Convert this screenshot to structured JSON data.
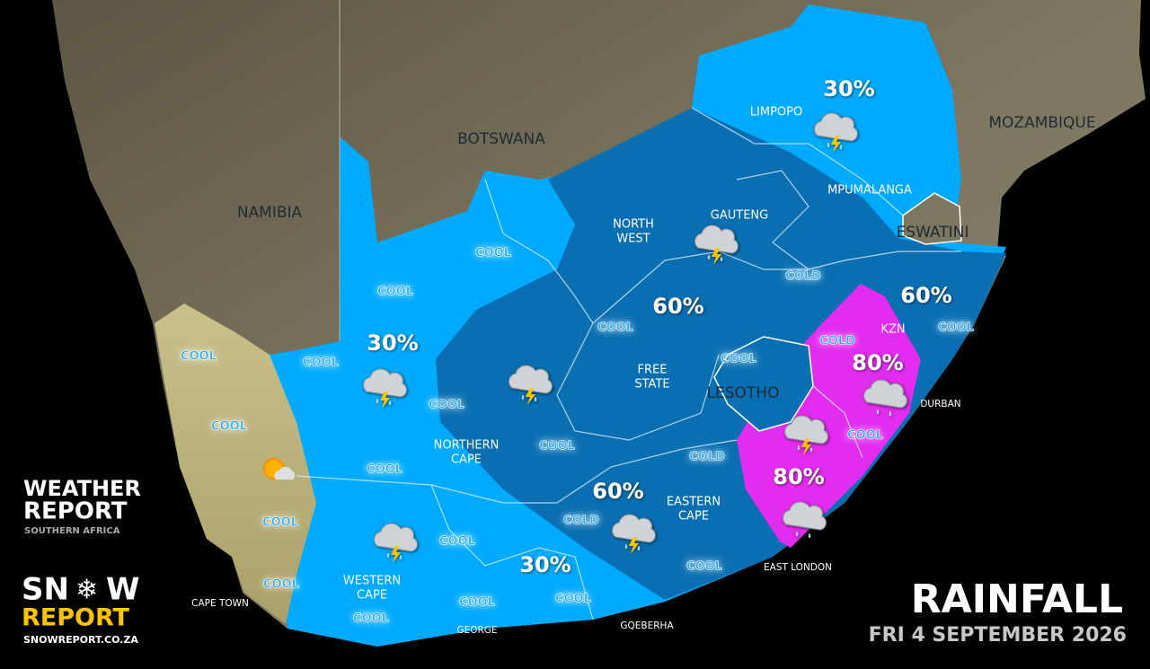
{
  "title": "RAINFALL",
  "date": "FRI 4 SEPTEMBER 2026",
  "brand": {
    "weather_report": [
      "WEATHER",
      "REPORT"
    ],
    "region": "SOUTHERN AFRICA",
    "snow_report": [
      "SN",
      "W",
      "REPORT"
    ],
    "url": "SNOWREPORT.CO.ZA"
  },
  "countries": [
    "BOTSWANA",
    "NAMIBIA",
    "MOZAMBIQUE",
    "LESOTHO",
    "ESWATINI"
  ],
  "provinces": [
    {
      "lines": [
        "LIMPOPO"
      ]
    },
    {
      "lines": [
        "MPUMALANGA"
      ]
    },
    {
      "lines": [
        "GAUTENG"
      ]
    },
    {
      "lines": [
        "NORTH",
        "WEST"
      ]
    },
    {
      "lines": [
        "FREE",
        "STATE"
      ]
    },
    {
      "lines": [
        "KZN"
      ]
    },
    {
      "lines": [
        "NORTHERN",
        "CAPE"
      ]
    },
    {
      "lines": [
        "EASTERN",
        "CAPE"
      ]
    },
    {
      "lines": [
        "WESTERN",
        "CAPE"
      ]
    }
  ],
  "cities": [
    "CAPE TOWN",
    "GEORGE",
    "GQEBERHA",
    "EAST LONDON",
    "DURBAN"
  ],
  "rain_chances": [
    "30%",
    "60%",
    "60%",
    "30%",
    "80%",
    "80%",
    "60%",
    "30%"
  ],
  "temperature_labels": [
    "COOL",
    "COOL",
    "COOL",
    "COOL",
    "COOL",
    "COOL",
    "COOL",
    "COOL",
    "COOL",
    "COOL",
    "COOL",
    "COOL",
    "COOL",
    "COOL",
    "COOL",
    "COOL",
    "COOL",
    "COOL",
    "COOL",
    "COLD",
    "COLD",
    "COLD",
    "COLD"
  ]
}
